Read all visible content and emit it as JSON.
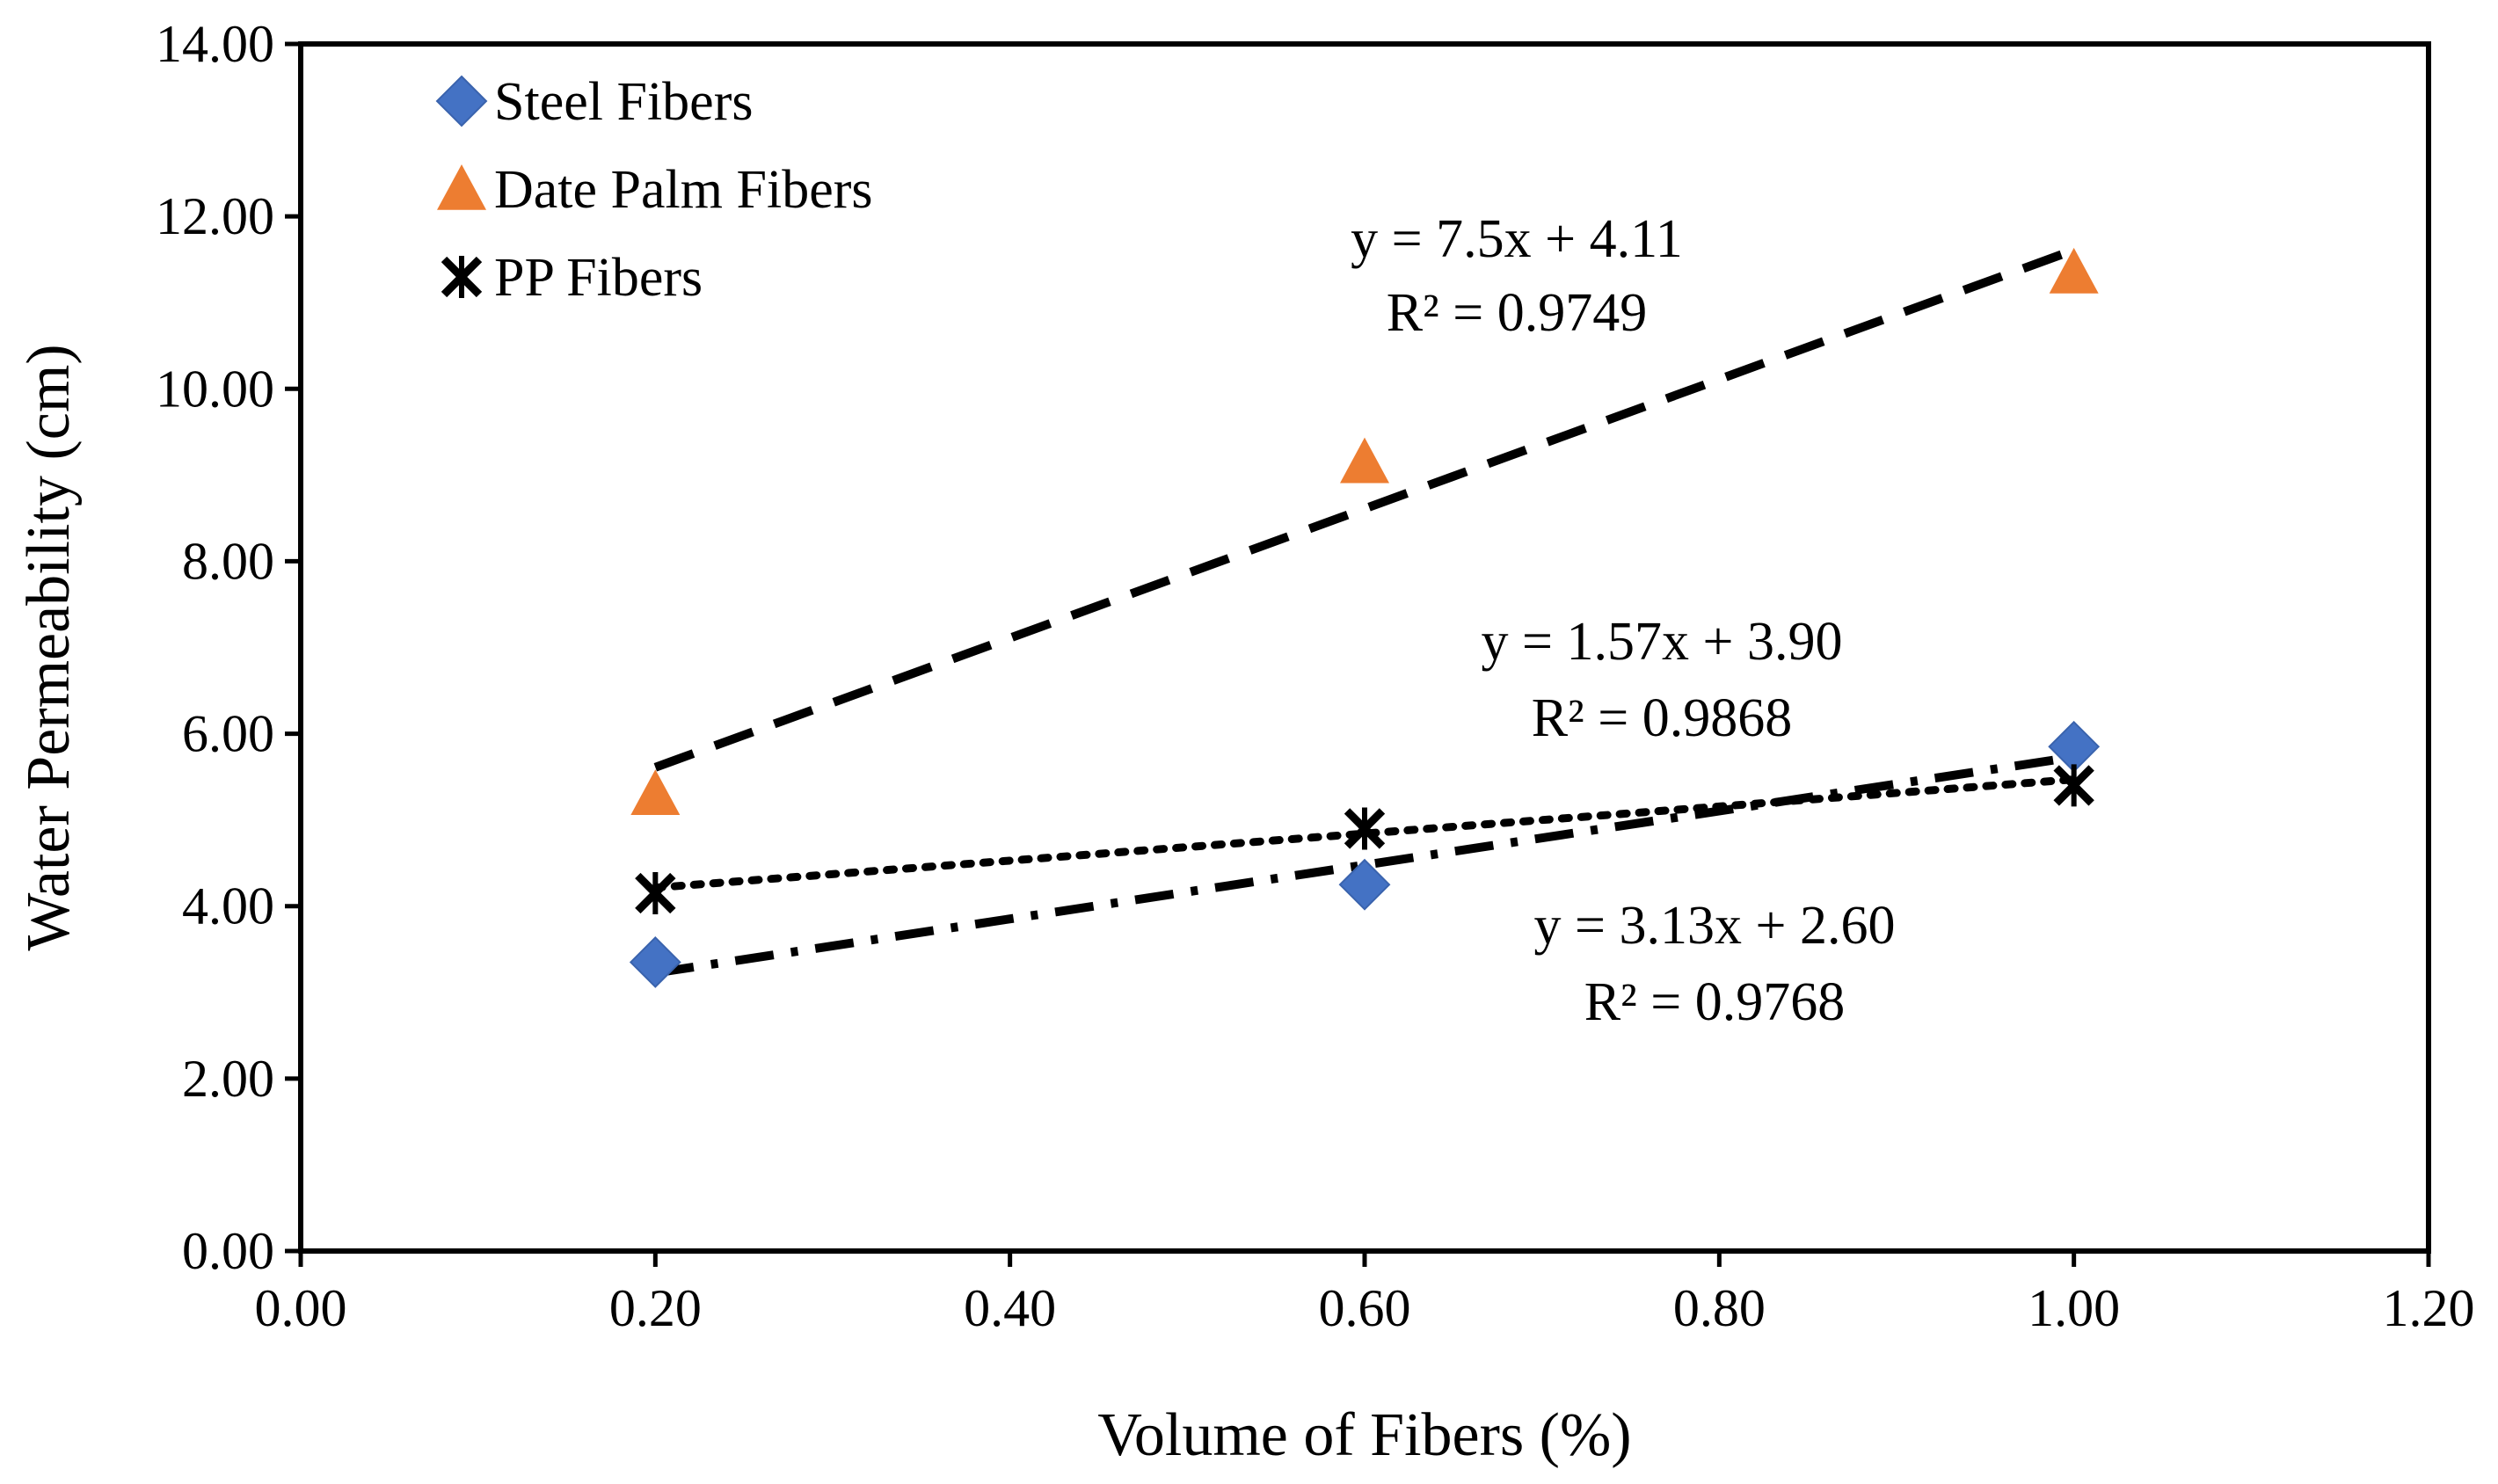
{
  "chart_data": {
    "type": "scatter",
    "title": "",
    "xlabel": "Volume of Fibers (%)",
    "ylabel": "Water Permeability (cm)",
    "xlim": [
      0,
      1.2
    ],
    "ylim": [
      0,
      14
    ],
    "x_ticks": [
      "0.00",
      "0.20",
      "0.40",
      "0.60",
      "0.80",
      "1.00",
      "1.20"
    ],
    "y_ticks": [
      "0.00",
      "2.00",
      "4.00",
      "6.00",
      "8.00",
      "10.00",
      "12.00",
      "14.00"
    ],
    "legend_position": "top-left",
    "series": [
      {
        "name": "Steel Fibers",
        "marker": "diamond",
        "color": "#4472C4",
        "x": [
          0.2,
          0.6,
          1.0
        ],
        "values": [
          3.35,
          4.25,
          5.85
        ],
        "trendline": {
          "style": "dash-dot",
          "slope": 3.13,
          "intercept": 2.6,
          "equation": "y = 3.13x + 2.60",
          "r2": "R² = 0.9768"
        }
      },
      {
        "name": "Date Palm Fibers",
        "marker": "triangle",
        "color": "#ED7D31",
        "x": [
          0.2,
          0.6,
          1.0
        ],
        "values": [
          5.3,
          9.15,
          11.35
        ],
        "trendline": {
          "style": "dash",
          "slope": 7.5,
          "intercept": 4.11,
          "equation": "y = 7.5x + 4.11",
          "r2": "R² = 0.9749"
        }
      },
      {
        "name": "PP Fibers",
        "marker": "star",
        "color": "#000000",
        "x": [
          0.2,
          0.6,
          1.0
        ],
        "values": [
          4.15,
          4.9,
          5.4
        ],
        "trendline": {
          "style": "dot",
          "slope": 1.57,
          "intercept": 3.9,
          "equation": "y = 1.57x + 3.90",
          "r2": "R² = 0.9868"
        }
      }
    ]
  }
}
